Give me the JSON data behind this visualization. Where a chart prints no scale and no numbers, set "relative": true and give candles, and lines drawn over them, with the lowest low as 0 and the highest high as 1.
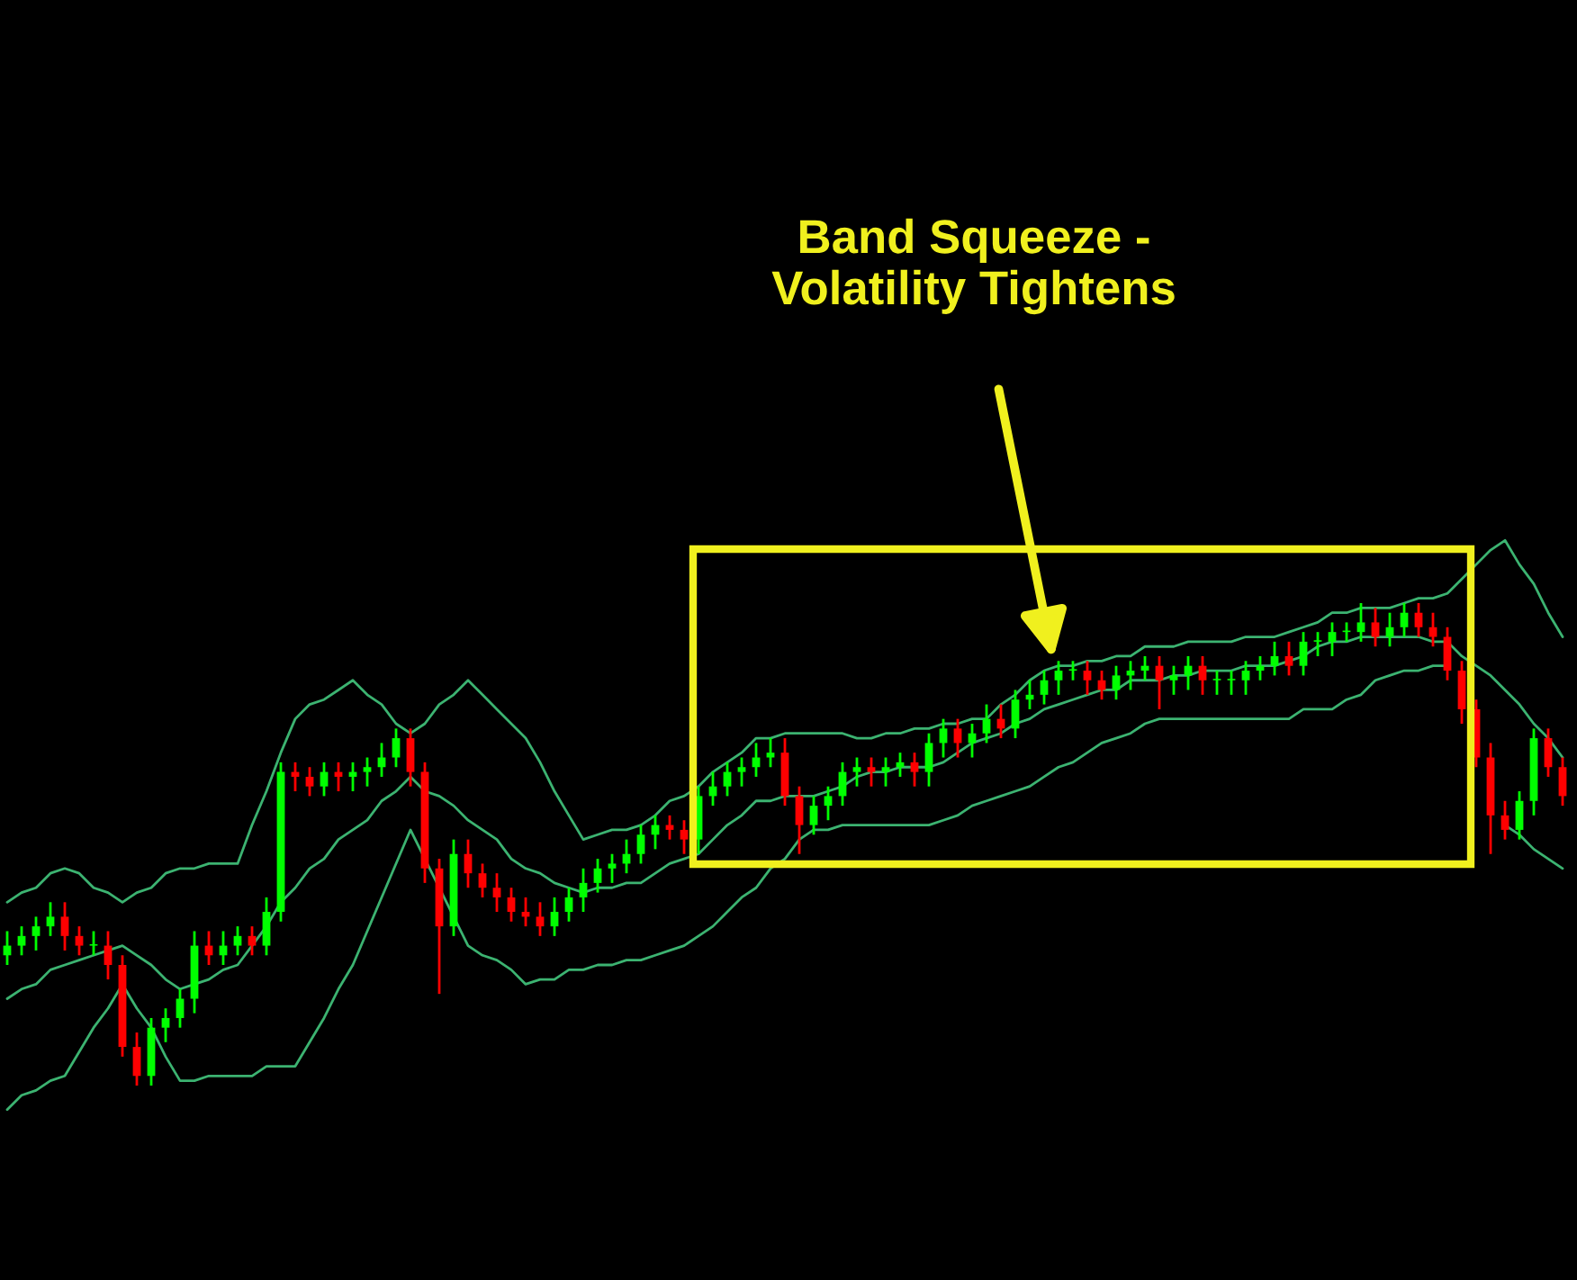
{
  "chart_data": {
    "type": "candlestick",
    "relative": true,
    "grid": false,
    "annotations": [
      "Band Squeeze -\nVolatility Tightens"
    ],
    "categories": [
      null,
      null,
      null,
      null,
      null,
      null,
      null,
      null,
      null,
      null,
      null,
      null,
      null,
      null,
      null,
      null,
      null,
      null,
      null,
      null,
      null,
      null,
      null,
      null,
      null,
      null,
      null,
      null,
      null,
      null,
      null,
      null,
      null,
      null,
      null,
      null,
      null,
      null,
      null,
      null,
      null,
      null,
      null,
      null,
      null,
      null,
      null,
      null,
      null,
      null,
      null,
      null,
      null,
      null,
      null,
      null,
      null,
      null,
      null,
      null,
      null,
      null,
      null,
      null,
      null,
      null,
      null,
      null,
      null,
      null,
      null,
      null,
      null,
      null,
      null,
      null,
      null,
      null,
      null,
      null,
      null,
      null,
      null,
      null,
      null,
      null,
      null,
      null,
      null,
      null,
      null,
      null,
      null,
      null,
      null,
      null,
      null,
      null,
      null,
      null,
      null,
      null,
      null,
      null,
      null,
      null,
      null,
      null,
      null
    ],
    "ohlc": [
      [
        0.27,
        0.32,
        0.25,
        0.29
      ],
      [
        0.29,
        0.33,
        0.27,
        0.31
      ],
      [
        0.31,
        0.35,
        0.28,
        0.33
      ],
      [
        0.33,
        0.38,
        0.31,
        0.35
      ],
      [
        0.35,
        0.38,
        0.28,
        0.31
      ],
      [
        0.31,
        0.33,
        0.27,
        0.29
      ],
      [
        0.29,
        0.32,
        0.27,
        0.29
      ],
      [
        0.29,
        0.32,
        0.22,
        0.25
      ],
      [
        0.25,
        0.27,
        0.06,
        0.08
      ],
      [
        0.08,
        0.11,
        0.0,
        0.02
      ],
      [
        0.02,
        0.14,
        0.0,
        0.12
      ],
      [
        0.12,
        0.16,
        0.09,
        0.14
      ],
      [
        0.14,
        0.2,
        0.12,
        0.18
      ],
      [
        0.18,
        0.32,
        0.15,
        0.29
      ],
      [
        0.29,
        0.32,
        0.25,
        0.27
      ],
      [
        0.27,
        0.32,
        0.25,
        0.29
      ],
      [
        0.29,
        0.33,
        0.27,
        0.31
      ],
      [
        0.31,
        0.33,
        0.27,
        0.29
      ],
      [
        0.29,
        0.39,
        0.27,
        0.36
      ],
      [
        0.36,
        0.67,
        0.34,
        0.65
      ],
      [
        0.65,
        0.67,
        0.61,
        0.64
      ],
      [
        0.64,
        0.66,
        0.6,
        0.62
      ],
      [
        0.62,
        0.67,
        0.6,
        0.65
      ],
      [
        0.65,
        0.67,
        0.61,
        0.64
      ],
      [
        0.64,
        0.67,
        0.61,
        0.65
      ],
      [
        0.65,
        0.68,
        0.62,
        0.66
      ],
      [
        0.66,
        0.71,
        0.64,
        0.68
      ],
      [
        0.68,
        0.74,
        0.66,
        0.72
      ],
      [
        0.72,
        0.74,
        0.62,
        0.65
      ],
      [
        0.65,
        0.67,
        0.42,
        0.45
      ],
      [
        0.45,
        0.47,
        0.19,
        0.33
      ],
      [
        0.33,
        0.51,
        0.31,
        0.48
      ],
      [
        0.48,
        0.51,
        0.41,
        0.44
      ],
      [
        0.44,
        0.46,
        0.39,
        0.41
      ],
      [
        0.41,
        0.44,
        0.36,
        0.39
      ],
      [
        0.39,
        0.41,
        0.34,
        0.36
      ],
      [
        0.36,
        0.39,
        0.33,
        0.35
      ],
      [
        0.35,
        0.38,
        0.31,
        0.33
      ],
      [
        0.33,
        0.39,
        0.31,
        0.36
      ],
      [
        0.36,
        0.41,
        0.34,
        0.39
      ],
      [
        0.39,
        0.45,
        0.36,
        0.42
      ],
      [
        0.42,
        0.47,
        0.4,
        0.45
      ],
      [
        0.45,
        0.48,
        0.42,
        0.46
      ],
      [
        0.46,
        0.51,
        0.44,
        0.48
      ],
      [
        0.48,
        0.54,
        0.46,
        0.52
      ],
      [
        0.52,
        0.56,
        0.49,
        0.54
      ],
      [
        0.54,
        0.56,
        0.51,
        0.53
      ],
      [
        0.53,
        0.55,
        0.48,
        0.51
      ],
      [
        0.51,
        0.62,
        0.48,
        0.6
      ],
      [
        0.6,
        0.65,
        0.58,
        0.62
      ],
      [
        0.62,
        0.67,
        0.6,
        0.65
      ],
      [
        0.65,
        0.68,
        0.62,
        0.66
      ],
      [
        0.66,
        0.71,
        0.64,
        0.68
      ],
      [
        0.68,
        0.72,
        0.66,
        0.69
      ],
      [
        0.69,
        0.72,
        0.58,
        0.6
      ],
      [
        0.6,
        0.62,
        0.48,
        0.54
      ],
      [
        0.54,
        0.6,
        0.52,
        0.58
      ],
      [
        0.58,
        0.62,
        0.55,
        0.6
      ],
      [
        0.6,
        0.67,
        0.58,
        0.65
      ],
      [
        0.65,
        0.68,
        0.62,
        0.66
      ],
      [
        0.66,
        0.68,
        0.62,
        0.65
      ],
      [
        0.65,
        0.68,
        0.62,
        0.66
      ],
      [
        0.66,
        0.69,
        0.64,
        0.67
      ],
      [
        0.67,
        0.69,
        0.62,
        0.65
      ],
      [
        0.65,
        0.73,
        0.62,
        0.71
      ],
      [
        0.71,
        0.76,
        0.68,
        0.74
      ],
      [
        0.74,
        0.76,
        0.68,
        0.71
      ],
      [
        0.71,
        0.75,
        0.68,
        0.73
      ],
      [
        0.73,
        0.79,
        0.71,
        0.76
      ],
      [
        0.76,
        0.79,
        0.72,
        0.74
      ],
      [
        0.74,
        0.82,
        0.72,
        0.8
      ],
      [
        0.8,
        0.84,
        0.78,
        0.81
      ],
      [
        0.81,
        0.86,
        0.79,
        0.84
      ],
      [
        0.84,
        0.88,
        0.81,
        0.86
      ],
      [
        0.86,
        0.88,
        0.84,
        0.86
      ],
      [
        0.86,
        0.88,
        0.81,
        0.84
      ],
      [
        0.84,
        0.86,
        0.8,
        0.82
      ],
      [
        0.82,
        0.87,
        0.8,
        0.85
      ],
      [
        0.85,
        0.88,
        0.82,
        0.86
      ],
      [
        0.86,
        0.89,
        0.84,
        0.87
      ],
      [
        0.87,
        0.89,
        0.78,
        0.84
      ],
      [
        0.84,
        0.87,
        0.81,
        0.85
      ],
      [
        0.85,
        0.89,
        0.82,
        0.87
      ],
      [
        0.87,
        0.89,
        0.81,
        0.84
      ],
      [
        0.84,
        0.86,
        0.81,
        0.84
      ],
      [
        0.84,
        0.86,
        0.81,
        0.84
      ],
      [
        0.84,
        0.88,
        0.81,
        0.86
      ],
      [
        0.86,
        0.89,
        0.84,
        0.87
      ],
      [
        0.87,
        0.92,
        0.85,
        0.89
      ],
      [
        0.89,
        0.92,
        0.85,
        0.87
      ],
      [
        0.87,
        0.94,
        0.85,
        0.92
      ],
      [
        0.92,
        0.94,
        0.89,
        0.92
      ],
      [
        0.92,
        0.96,
        0.89,
        0.94
      ],
      [
        0.94,
        0.96,
        0.92,
        0.94
      ],
      [
        0.94,
        1.0,
        0.92,
        0.96
      ],
      [
        0.96,
        0.99,
        0.91,
        0.93
      ],
      [
        0.93,
        0.98,
        0.91,
        0.95
      ],
      [
        0.95,
        1.0,
        0.93,
        0.98
      ],
      [
        0.98,
        1.0,
        0.93,
        0.95
      ],
      [
        0.95,
        0.98,
        0.91,
        0.93
      ],
      [
        0.93,
        0.95,
        0.84,
        0.86
      ],
      [
        0.86,
        0.88,
        0.75,
        0.78
      ],
      [
        0.78,
        0.8,
        0.66,
        0.68
      ],
      [
        0.68,
        0.71,
        0.48,
        0.56
      ],
      [
        0.56,
        0.59,
        0.51,
        0.53
      ],
      [
        0.53,
        0.61,
        0.51,
        0.59
      ],
      [
        0.59,
        0.74,
        0.56,
        0.72
      ],
      [
        0.72,
        0.74,
        0.64,
        0.66
      ],
      [
        0.66,
        0.68,
        0.58,
        0.6
      ]
    ],
    "colors": [
      "#00ff00",
      "#00ff00",
      "#00ff00",
      "#00ff00",
      "#ff0000",
      "#ff0000",
      "#00ff00",
      "#ff0000",
      "#ff0000",
      "#ff0000",
      "#00ff00",
      "#00ff00",
      "#00ff00",
      "#00ff00",
      "#ff0000",
      "#00ff00",
      "#00ff00",
      "#ff0000",
      "#00ff00",
      "#00ff00",
      "#ff0000",
      "#ff0000",
      "#00ff00",
      "#ff0000",
      "#00ff00",
      "#00ff00",
      "#00ff00",
      "#00ff00",
      "#ff0000",
      "#ff0000",
      "#ff0000",
      "#00ff00",
      "#ff0000",
      "#ff0000",
      "#ff0000",
      "#ff0000",
      "#ff0000",
      "#ff0000",
      "#00ff00",
      "#00ff00",
      "#00ff00",
      "#00ff00",
      "#00ff00",
      "#00ff00",
      "#00ff00",
      "#00ff00",
      "#ff0000",
      "#ff0000",
      "#00ff00",
      "#00ff00",
      "#00ff00",
      "#00ff00",
      "#00ff00",
      "#00ff00",
      "#ff0000",
      "#ff0000",
      "#00ff00",
      "#00ff00",
      "#00ff00",
      "#00ff00",
      "#ff0000",
      "#00ff00",
      "#00ff00",
      "#ff0000",
      "#00ff00",
      "#00ff00",
      "#ff0000",
      "#00ff00",
      "#00ff00",
      "#ff0000",
      "#00ff00",
      "#00ff00",
      "#00ff00",
      "#00ff00",
      "#00ff00",
      "#ff0000",
      "#ff0000",
      "#00ff00",
      "#00ff00",
      "#00ff00",
      "#ff0000",
      "#00ff00",
      "#00ff00",
      "#ff0000",
      "#00ff00",
      "#00ff00",
      "#00ff00",
      "#00ff00",
      "#00ff00",
      "#ff0000",
      "#00ff00",
      "#00ff00",
      "#00ff00",
      "#00ff00",
      "#00ff00",
      "#ff0000",
      "#00ff00",
      "#00ff00",
      "#ff0000",
      "#ff0000",
      "#ff0000",
      "#ff0000",
      "#ff0000",
      "#ff0000",
      "#ff0000",
      "#00ff00",
      "#00ff00",
      "#ff0000",
      "#ff0000"
    ],
    "series": [
      {
        "type": "line",
        "color": "#3cb371",
        "values": [
          0.38,
          0.4,
          0.41,
          0.44,
          0.45,
          0.44,
          0.41,
          0.4,
          0.38,
          0.4,
          0.41,
          0.44,
          0.45,
          0.45,
          0.46,
          0.46,
          0.46,
          0.54,
          0.61,
          0.69,
          0.76,
          0.79,
          0.8,
          0.82,
          0.84,
          0.81,
          0.79,
          0.75,
          0.73,
          0.75,
          0.79,
          0.81,
          0.84,
          0.81,
          0.78,
          0.75,
          0.72,
          0.67,
          0.61,
          0.56,
          0.51,
          0.52,
          0.53,
          0.53,
          0.54,
          0.56,
          0.59,
          0.6,
          0.62,
          0.65,
          0.67,
          0.69,
          0.72,
          0.72,
          0.73,
          0.73,
          0.73,
          0.73,
          0.73,
          0.72,
          0.72,
          0.73,
          0.73,
          0.74,
          0.74,
          0.75,
          0.75,
          0.76,
          0.76,
          0.79,
          0.81,
          0.84,
          0.86,
          0.87,
          0.87,
          0.88,
          0.88,
          0.89,
          0.89,
          0.91,
          0.91,
          0.91,
          0.92,
          0.92,
          0.92,
          0.92,
          0.93,
          0.93,
          0.93,
          0.94,
          0.95,
          0.96,
          0.98,
          0.98,
          0.99,
          0.99,
          0.99,
          1.0,
          1.01,
          1.01,
          1.02,
          1.05,
          1.08,
          1.11,
          1.13,
          1.08,
          1.04,
          0.98,
          0.93
        ]
      },
      {
        "type": "line",
        "color": "#3cb371",
        "values": [
          0.18,
          0.2,
          0.21,
          0.24,
          0.25,
          0.26,
          0.27,
          0.28,
          0.29,
          0.27,
          0.25,
          0.22,
          0.2,
          0.21,
          0.22,
          0.24,
          0.25,
          0.29,
          0.33,
          0.38,
          0.41,
          0.45,
          0.47,
          0.51,
          0.53,
          0.55,
          0.59,
          0.61,
          0.64,
          0.61,
          0.6,
          0.58,
          0.55,
          0.53,
          0.51,
          0.47,
          0.45,
          0.44,
          0.42,
          0.41,
          0.4,
          0.41,
          0.41,
          0.42,
          0.42,
          0.44,
          0.46,
          0.47,
          0.48,
          0.51,
          0.54,
          0.56,
          0.59,
          0.59,
          0.6,
          0.6,
          0.6,
          0.61,
          0.62,
          0.64,
          0.65,
          0.65,
          0.66,
          0.66,
          0.66,
          0.67,
          0.69,
          0.71,
          0.72,
          0.73,
          0.75,
          0.76,
          0.78,
          0.79,
          0.8,
          0.81,
          0.82,
          0.82,
          0.84,
          0.84,
          0.84,
          0.85,
          0.85,
          0.86,
          0.86,
          0.86,
          0.87,
          0.87,
          0.87,
          0.88,
          0.89,
          0.91,
          0.92,
          0.92,
          0.93,
          0.93,
          0.93,
          0.93,
          0.93,
          0.92,
          0.92,
          0.89,
          0.87,
          0.85,
          0.82,
          0.79,
          0.75,
          0.72,
          0.68
        ]
      },
      {
        "type": "line",
        "color": "#3cb371",
        "values": [
          -0.05,
          -0.02,
          -0.01,
          0.01,
          0.02,
          0.07,
          0.12,
          0.16,
          0.21,
          0.16,
          0.12,
          0.06,
          0.01,
          0.01,
          0.02,
          0.02,
          0.02,
          0.02,
          0.04,
          0.04,
          0.04,
          0.09,
          0.14,
          0.2,
          0.25,
          0.32,
          0.39,
          0.46,
          0.53,
          0.47,
          0.41,
          0.35,
          0.29,
          0.27,
          0.26,
          0.24,
          0.21,
          0.22,
          0.22,
          0.24,
          0.24,
          0.25,
          0.25,
          0.26,
          0.26,
          0.27,
          0.28,
          0.29,
          0.31,
          0.33,
          0.36,
          0.39,
          0.41,
          0.45,
          0.47,
          0.51,
          0.53,
          0.53,
          0.54,
          0.54,
          0.54,
          0.54,
          0.54,
          0.54,
          0.54,
          0.55,
          0.56,
          0.58,
          0.59,
          0.6,
          0.61,
          0.62,
          0.64,
          0.66,
          0.67,
          0.69,
          0.71,
          0.72,
          0.73,
          0.75,
          0.76,
          0.76,
          0.76,
          0.76,
          0.76,
          0.76,
          0.76,
          0.76,
          0.76,
          0.76,
          0.78,
          0.78,
          0.78,
          0.8,
          0.81,
          0.84,
          0.85,
          0.86,
          0.86,
          0.87,
          0.87,
          null,
          null,
          null,
          0.54,
          0.52,
          0.49,
          0.47,
          0.45
        ]
      }
    ]
  }
}
